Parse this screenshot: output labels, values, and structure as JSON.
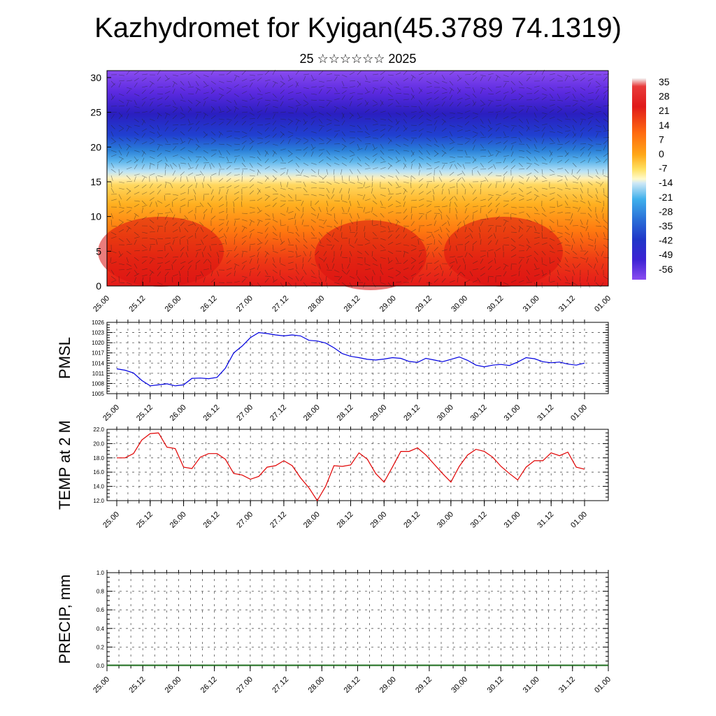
{
  "title": "Kazhydromet for Kyigan(45.3789 74.1319)",
  "subtitle": "25 ☆☆☆☆☆☆ 2025",
  "chart_data": [
    {
      "type": "heatmap",
      "ylim": [
        0,
        31
      ],
      "yticks": [
        "0",
        "5",
        "10",
        "15",
        "20",
        "25",
        "30"
      ],
      "xticks": [
        "25.00",
        "25.12",
        "26.00",
        "26.12",
        "27.00",
        "27.12",
        "28.00",
        "28.12",
        "29.00",
        "29.12",
        "30.00",
        "30.12",
        "31.00",
        "31.12",
        "01.00"
      ],
      "colorbar": [
        "35",
        "28",
        "21",
        "14",
        "7",
        "0",
        "-7",
        "-14",
        "-21",
        "-28",
        "-35",
        "-42",
        "-49",
        "-56"
      ],
      "colorbar_stops": [
        "#f0f0f0",
        "#e02020",
        "#ff6a00",
        "#ffb400",
        "#ffe060",
        "#fff5b0",
        "#a0d8f0",
        "#20a8e8",
        "#2060d0",
        "#2020c0",
        "#5020e0",
        "#8040f0"
      ],
      "vector_overlay": true
    },
    {
      "type": "line",
      "ylabel": "PMSL",
      "ylim": [
        1005,
        1026
      ],
      "yticks": [
        "1005",
        "1008",
        "1011",
        "1014",
        "1017",
        "1020",
        "1023",
        "1026"
      ],
      "xticks": [
        "25.00",
        "25.12",
        "26.00",
        "26.12",
        "27.00",
        "27.12",
        "28.00",
        "28.12",
        "29.00",
        "29.12",
        "30.00",
        "30.12",
        "31.00",
        "31.12",
        "01.00"
      ],
      "grid": true,
      "color": "#0000e0",
      "values": [
        1012.3,
        1011.9,
        1011.1,
        1008.9,
        1007.3,
        1007.6,
        1007.9,
        1007.3,
        1007.6,
        1009.5,
        1009.6,
        1009.4,
        1009.8,
        1012.5,
        1017.0,
        1019.0,
        1021.5,
        1023.0,
        1022.7,
        1022.3,
        1022.0,
        1022.3,
        1022.0,
        1020.7,
        1020.5,
        1019.9,
        1018.5,
        1016.8,
        1016.0,
        1015.6,
        1015.1,
        1014.9,
        1015.2,
        1015.6,
        1015.4,
        1014.5,
        1014.2,
        1015.4,
        1014.9,
        1014.4,
        1015.1,
        1015.8,
        1014.8,
        1013.4,
        1012.9,
        1013.4,
        1013.6,
        1013.3,
        1014.3,
        1015.6,
        1015.3,
        1014.4,
        1014.1,
        1014.3,
        1013.7,
        1013.4,
        1014.0
      ]
    },
    {
      "type": "line",
      "ylabel": "TEMP at 2 M",
      "ylim": [
        12.0,
        22.0
      ],
      "yticks": [
        "12.0",
        "14.0",
        "16.0",
        "18.0",
        "20.0",
        "22.0"
      ],
      "xticks": [
        "25.00",
        "25.12",
        "26.00",
        "26.12",
        "27.00",
        "27.12",
        "28.00",
        "28.12",
        "29.00",
        "29.12",
        "30.00",
        "30.12",
        "31.00",
        "31.12",
        "01.00"
      ],
      "grid": true,
      "color": "#e00000",
      "values": [
        18.0,
        18.0,
        18.6,
        20.5,
        21.4,
        21.5,
        19.5,
        19.3,
        16.7,
        16.5,
        18.1,
        18.6,
        18.6,
        17.8,
        15.8,
        15.6,
        15.0,
        15.4,
        16.7,
        16.9,
        17.6,
        16.9,
        15.2,
        13.8,
        12.0,
        14.0,
        16.9,
        16.8,
        17.0,
        18.7,
        17.8,
        15.8,
        14.6,
        16.7,
        18.9,
        18.9,
        19.4,
        18.4,
        17.1,
        15.8,
        14.6,
        16.8,
        18.4,
        19.2,
        18.9,
        18.1,
        16.8,
        15.8,
        14.9,
        16.7,
        17.6,
        17.6,
        18.7,
        18.3,
        18.8,
        16.7,
        16.4
      ]
    },
    {
      "type": "bar",
      "ylabel": "PRECIP, mm",
      "ylim": [
        0.0,
        1.0
      ],
      "yticks": [
        "0.0",
        "0.2",
        "0.4",
        "0.6",
        "0.8",
        "1.0"
      ],
      "xticks": [
        "25.00",
        "25.12",
        "26.00",
        "26.12",
        "27.00",
        "27.12",
        "28.00",
        "28.12",
        "29.00",
        "29.12",
        "30.00",
        "30.12",
        "31.00",
        "31.12",
        "01.00"
      ],
      "grid": true,
      "color": "#1a6b1a",
      "values": []
    }
  ]
}
